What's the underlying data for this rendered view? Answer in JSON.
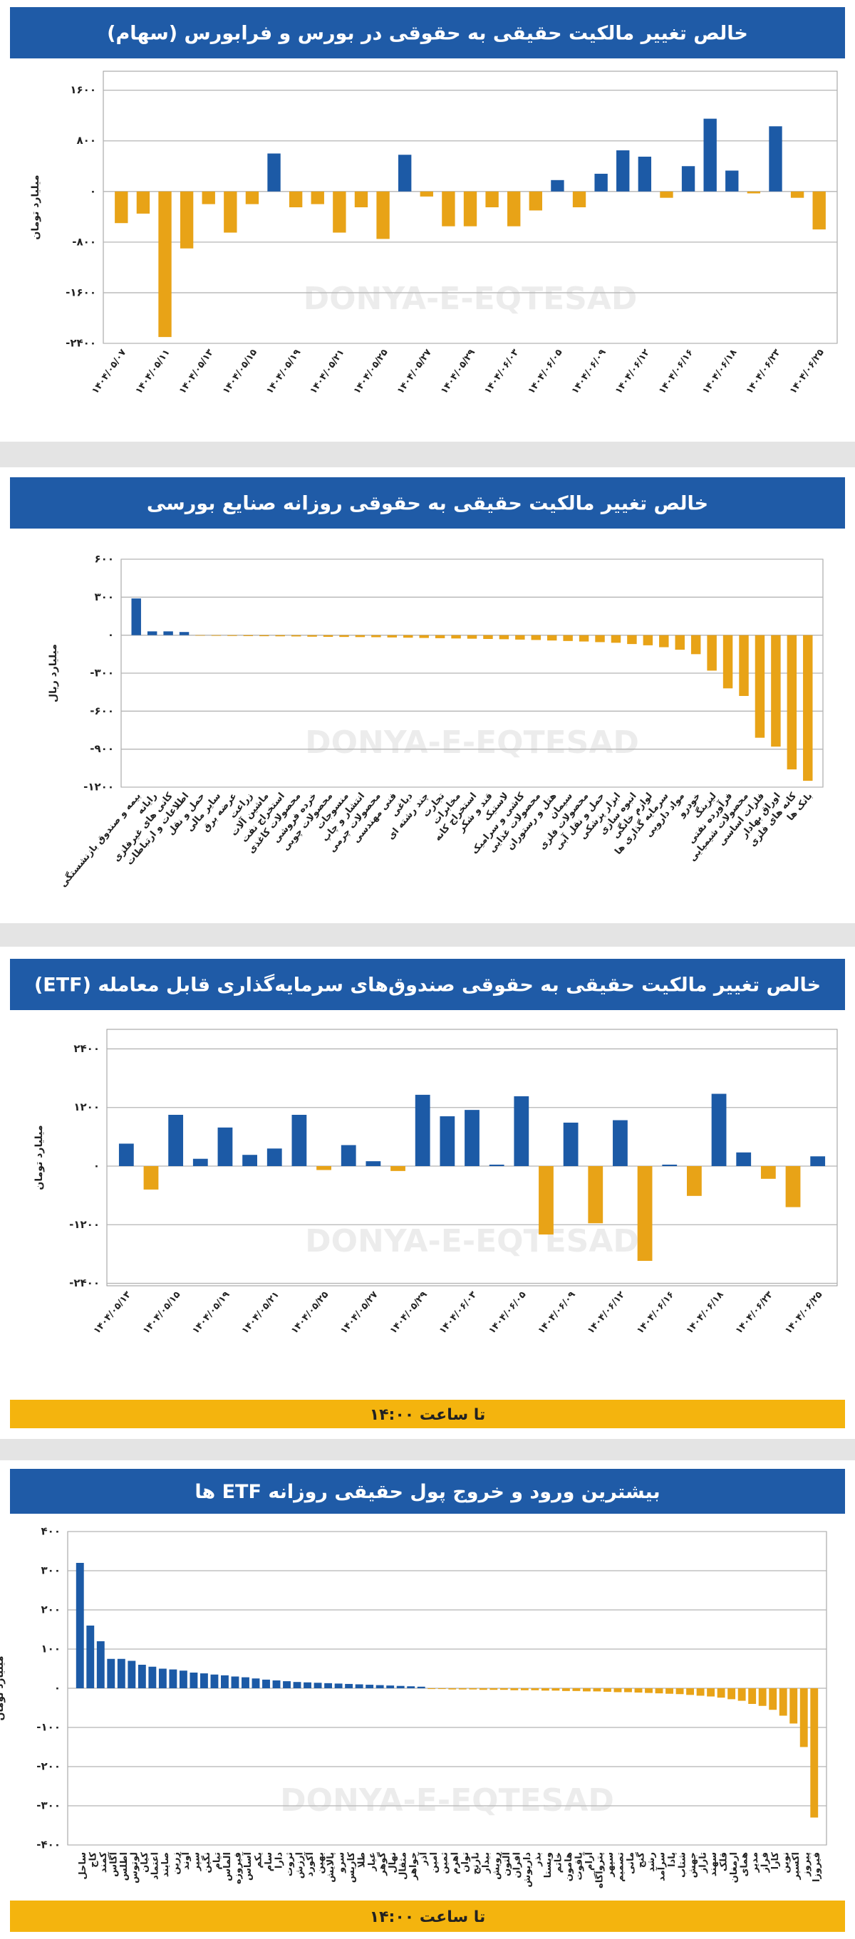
{
  "chart_data": [
    {
      "type": "bar",
      "title": "خالص تغییر مالکیت حقیقی به حقوقی در بورس و فرابورس (سهام)",
      "y_label": "میلیارد تومان",
      "watermark": "DONYA-E-EQTESAD",
      "colors": {
        "positive": "#1c5aa6",
        "negative": "#e8a317"
      },
      "grid": true,
      "ylim": [
        -2400,
        1900
      ],
      "yticks": [
        {
          "value": 1600,
          "label": "۱۶۰۰"
        },
        {
          "value": 800,
          "label": "۸۰۰"
        },
        {
          "value": 0,
          "label": "۰"
        },
        {
          "value": -800,
          "label": "-۸۰۰"
        },
        {
          "value": -1600,
          "label": "-۱۶۰۰"
        },
        {
          "value": -2400,
          "label": "-۲۴۰۰"
        }
      ],
      "categories": [
        "۱۴۰۴/۰۵/۰۷",
        null,
        "۱۴۰۴/۰۵/۱۱",
        null,
        "۱۴۰۴/۰۵/۱۳",
        null,
        "۱۴۰۴/۰۵/۱۵",
        null,
        "۱۴۰۴/۰۵/۱۹",
        null,
        "۱۴۰۴/۰۵/۲۱",
        null,
        "۱۴۰۴/۰۵/۲۵",
        null,
        "۱۴۰۴/۰۵/۲۷",
        null,
        "۱۴۰۴/۰۵/۲۹",
        null,
        "۱۴۰۴/۰۶/۰۳",
        null,
        "۱۴۰۴/۰۶/۰۵",
        null,
        "۱۴۰۴/۰۶/۰۹",
        null,
        "۱۴۰۴/۰۶/۱۲",
        null,
        "۱۴۰۴/۰۶/۱۶",
        null,
        "۱۴۰۴/۰۶/۱۸",
        null,
        "۱۴۰۴/۰۶/۲۳",
        null,
        "۱۴۰۴/۰۶/۲۵"
      ],
      "values": [
        -500,
        -350,
        -2300,
        -900,
        -200,
        -650,
        -200,
        600,
        -250,
        -200,
        -650,
        -250,
        -750,
        580,
        -80,
        -550,
        -550,
        -250,
        -550,
        -300,
        180,
        -250,
        280,
        650,
        550,
        -100,
        400,
        1150,
        330,
        -30,
        1030,
        -100,
        -600
      ]
    },
    {
      "type": "bar",
      "title": "خالص تغییر مالکیت حقیقی به حقوقی روزانه صنایع بورسی",
      "y_label": "میلیارد ریال",
      "watermark": "DONYA-E-EQTESAD",
      "colors": {
        "positive": "#1c5aa6",
        "negative": "#e8a317"
      },
      "grid": true,
      "ylim": [
        -1200,
        600
      ],
      "yticks": [
        {
          "value": 600,
          "label": "۶۰۰"
        },
        {
          "value": 300,
          "label": "۳۰۰"
        },
        {
          "value": 0,
          "label": "۰"
        },
        {
          "value": -300,
          "label": "-۳۰۰"
        },
        {
          "value": -600,
          "label": "-۶۰۰"
        },
        {
          "value": -900,
          "label": "-۹۰۰"
        },
        {
          "value": -1200,
          "label": "-۱۲۰۰"
        }
      ],
      "categories": [
        "بیمه و صندوق بازنشستگی",
        "رایانه",
        "کانی های غیرفلزی",
        "اطلاعات و ارتباطات",
        "حمل و نقل",
        "سایر مالی",
        "عرضه برق",
        "زراعت",
        "ماشین آلات",
        "استخراج نفت",
        "محصولات کاغذی",
        "خرده فروشی",
        "محصولات چوبی",
        "منسوجات",
        "انتشار و چاپ",
        "محصولات چرمی",
        "فنی مهندسی",
        "دباغی",
        "چند رشته ای",
        "تجارت",
        "مخابرات",
        "استخراج کانه",
        "قند و شکر",
        "لاستیک",
        "کاشی و سرامیک",
        "محصولات غذایی",
        "هتل و رستوران",
        "سیمان",
        "محصولات فلزی",
        "حمل و نقل آبی",
        "ابزار پزشکی",
        "انبوه سازی",
        "لوازم خانگی",
        "سرمایه گذاری ها",
        "مواد دارویی",
        "خودرو",
        "لیزینگ",
        "فرآورده نفتی",
        "محصولات شیمیایی",
        "فلزات اساسی",
        "اوراق بهادار",
        "کانه های فلزی",
        "بانک ها"
      ],
      "values": [
        290,
        30,
        30,
        25,
        -4,
        -5,
        -6,
        -7,
        -8,
        -9,
        -10,
        -12,
        -13,
        -14,
        -15,
        -16,
        -18,
        -20,
        -22,
        -24,
        -26,
        -28,
        -30,
        -32,
        -35,
        -38,
        -42,
        -46,
        -50,
        -55,
        -60,
        -70,
        -80,
        -95,
        -115,
        -150,
        -280,
        -420,
        -480,
        -810,
        -880,
        -1060,
        -1150
      ]
    },
    {
      "type": "bar",
      "title": "خالص تغییر مالکیت حقیقی به حقوقی صندوق‌های سرمایه‌گذاری قابل معامله (ETF)",
      "y_label": "میلیارد تومان",
      "watermark": "DONYA-E-EQTESAD",
      "note": "تا ساعت ۱۴:۰۰",
      "colors": {
        "positive": "#1c5aa6",
        "negative": "#e8a317"
      },
      "grid": true,
      "ylim": [
        -2450,
        2800
      ],
      "yticks": [
        {
          "value": 2400,
          "label": "۲۴۰۰"
        },
        {
          "value": 1200,
          "label": "۱۲۰۰"
        },
        {
          "value": 0,
          "label": "۰"
        },
        {
          "value": -1200,
          "label": "-۱۲۰۰"
        },
        {
          "value": -2400,
          "label": "-۲۴۰۰"
        }
      ],
      "categories": [
        "۱۴۰۴/۰۵/۱۳",
        null,
        "۱۴۰۴/۰۵/۱۵",
        null,
        "۱۴۰۴/۰۵/۱۹",
        null,
        "۱۴۰۴/۰۵/۲۱",
        null,
        "۱۴۰۴/۰۵/۲۵",
        null,
        "۱۴۰۴/۰۵/۲۷",
        null,
        "۱۴۰۴/۰۵/۲۹",
        null,
        "۱۴۰۴/۰۶/۰۳",
        null,
        "۱۴۰۴/۰۶/۰۵",
        null,
        "۱۴۰۴/۰۶/۰۹",
        null,
        "۱۴۰۴/۰۶/۱۲",
        null,
        "۱۴۰۴/۰۶/۱۶",
        null,
        "۱۴۰۴/۰۶/۱۸",
        null,
        "۱۴۰۴/۰۶/۲۳",
        null,
        "۱۴۰۴/۰۶/۲۵"
      ],
      "values": [
        460,
        -480,
        1050,
        150,
        790,
        230,
        360,
        1050,
        -80,
        430,
        100,
        -100,
        1460,
        1020,
        1150,
        30,
        1430,
        -1400,
        890,
        -1170,
        940,
        -1940,
        30,
        -610,
        1480,
        280,
        -260,
        -840,
        200
      ]
    },
    {
      "type": "bar",
      "title": "بیشترین ورود و خروج پول حقیقی روزانه ETF ها",
      "y_label": "میلیارد تومان",
      "watermark": "DONYA-E-EQTESAD",
      "note": "تا ساعت ۱۴:۰۰",
      "colors": {
        "positive": "#1c5aa6",
        "negative": "#e8a317"
      },
      "grid": true,
      "ylim": [
        -400,
        400
      ],
      "yticks": [
        {
          "value": 400,
          "label": "۴۰۰"
        },
        {
          "value": 300,
          "label": "۳۰۰"
        },
        {
          "value": 200,
          "label": "۲۰۰"
        },
        {
          "value": 100,
          "label": "۱۰۰"
        },
        {
          "value": 0,
          "label": "۰"
        },
        {
          "value": -100,
          "label": "-۱۰۰"
        },
        {
          "value": -200,
          "label": "-۲۰۰"
        },
        {
          "value": -300,
          "label": "-۳۰۰"
        },
        {
          "value": -400,
          "label": "-۴۰۰"
        }
      ],
      "categories": [
        "ساحل",
        "کاج",
        "کمند",
        "آگاس",
        "اطلس",
        "لوتوس",
        "کیان",
        "اعتماد",
        "صایند",
        "زرین",
        "آوند",
        "سپر",
        "نگین",
        "تیام",
        "الماس",
        "فیروزه",
        "آساس",
        "یکم",
        "سام",
        "دارا",
        "ثروت",
        "ارزش",
        "آکورد",
        "بهین",
        "پالایش",
        "سرو",
        "کاریس",
        "طلا",
        "عیار",
        "گوهر",
        "نهال",
        "مثقال",
        "جواهر",
        "آذر",
        "امین",
        "ثمین",
        "اهرم",
        "توان",
        "نارنج",
        "بیدار",
        "رویش",
        "آلتون",
        "افران",
        "داریوش",
        "بذر",
        "ویستا",
        "خاتم",
        "هامون",
        "یاقوت",
        "آرام",
        "پتروآگاه",
        "سپهر",
        "تصمیم",
        "مانی",
        "گنج",
        "رشد",
        "سرآمد",
        "پادا",
        "شتاب",
        "جهش",
        "تاراز",
        "سهند",
        "قلک",
        "ارمغان",
        "همای",
        "مدیر",
        "فراز",
        "کارا",
        "نوین",
        "اکسیر",
        "پیروز",
        "فیروزا"
      ],
      "values": [
        320,
        160,
        120,
        75,
        75,
        70,
        60,
        55,
        50,
        48,
        45,
        40,
        38,
        35,
        33,
        30,
        28,
        25,
        22,
        20,
        18,
        16,
        15,
        14,
        13,
        12,
        11,
        10,
        9,
        8,
        7,
        6,
        5,
        4,
        -2,
        -2,
        -3,
        -3,
        -3,
        -4,
        -4,
        -4,
        -5,
        -5,
        -5,
        -6,
        -6,
        -7,
        -7,
        -8,
        -8,
        -9,
        -10,
        -10,
        -11,
        -12,
        -13,
        -14,
        -15,
        -17,
        -19,
        -21,
        -24,
        -28,
        -32,
        -40,
        -45,
        -55,
        -70,
        -90,
        -150,
        -330
      ]
    }
  ]
}
